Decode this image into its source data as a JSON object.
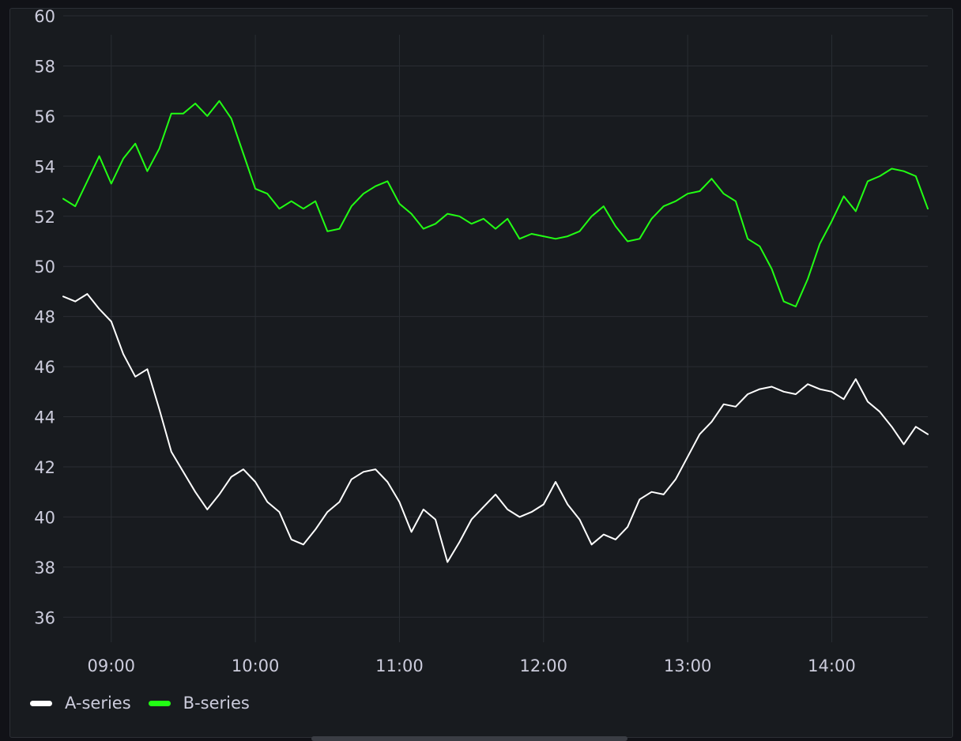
{
  "panel": {
    "background": "#181b1f",
    "grid_color": "#2a2d33"
  },
  "chart_data": {
    "type": "line",
    "title": "",
    "xlabel": "",
    "ylabel": "",
    "x_ticks": [
      "09:00",
      "10:00",
      "11:00",
      "12:00",
      "13:00",
      "14:00"
    ],
    "x_range": [
      "08:40",
      "14:40"
    ],
    "y_ticks": [
      36,
      38,
      40,
      42,
      44,
      46,
      48,
      50,
      52,
      54,
      56,
      58,
      60
    ],
    "ylim": [
      35,
      60
    ],
    "grid": true,
    "legend_position": "bottom-left",
    "series": [
      {
        "name": "A-series",
        "color": "#ffffff",
        "points": [
          [
            "08:40",
            48.8
          ],
          [
            "08:45",
            48.6
          ],
          [
            "08:50",
            48.9
          ],
          [
            "08:55",
            48.3
          ],
          [
            "09:00",
            47.8
          ],
          [
            "09:05",
            46.5
          ],
          [
            "09:10",
            45.6
          ],
          [
            "09:15",
            45.9
          ],
          [
            "09:20",
            44.3
          ],
          [
            "09:25",
            42.6
          ],
          [
            "09:30",
            41.8
          ],
          [
            "09:35",
            41.0
          ],
          [
            "09:40",
            40.3
          ],
          [
            "09:45",
            40.9
          ],
          [
            "09:50",
            41.6
          ],
          [
            "09:55",
            41.9
          ],
          [
            "10:00",
            41.4
          ],
          [
            "10:05",
            40.6
          ],
          [
            "10:10",
            40.2
          ],
          [
            "10:15",
            39.1
          ],
          [
            "10:20",
            38.9
          ],
          [
            "10:25",
            39.5
          ],
          [
            "10:30",
            40.2
          ],
          [
            "10:35",
            40.6
          ],
          [
            "10:40",
            41.5
          ],
          [
            "10:45",
            41.8
          ],
          [
            "10:50",
            41.9
          ],
          [
            "10:55",
            41.4
          ],
          [
            "11:00",
            40.6
          ],
          [
            "11:05",
            39.4
          ],
          [
            "11:10",
            40.3
          ],
          [
            "11:15",
            39.9
          ],
          [
            "11:20",
            38.2
          ],
          [
            "11:25",
            39.0
          ],
          [
            "11:30",
            39.9
          ],
          [
            "11:35",
            40.4
          ],
          [
            "11:40",
            40.9
          ],
          [
            "11:45",
            40.3
          ],
          [
            "11:50",
            40.0
          ],
          [
            "11:55",
            40.2
          ],
          [
            "12:00",
            40.5
          ],
          [
            "12:05",
            41.4
          ],
          [
            "12:10",
            40.5
          ],
          [
            "12:15",
            39.9
          ],
          [
            "12:20",
            38.9
          ],
          [
            "12:25",
            39.3
          ],
          [
            "12:30",
            39.1
          ],
          [
            "12:35",
            39.6
          ],
          [
            "12:40",
            40.7
          ],
          [
            "12:45",
            41.0
          ],
          [
            "12:50",
            40.9
          ],
          [
            "12:55",
            41.5
          ],
          [
            "13:00",
            42.4
          ],
          [
            "13:05",
            43.3
          ],
          [
            "13:10",
            43.8
          ],
          [
            "13:15",
            44.5
          ],
          [
            "13:20",
            44.4
          ],
          [
            "13:25",
            44.9
          ],
          [
            "13:30",
            45.1
          ],
          [
            "13:35",
            45.2
          ],
          [
            "13:40",
            45.0
          ],
          [
            "13:45",
            44.9
          ],
          [
            "13:50",
            45.3
          ],
          [
            "13:55",
            45.1
          ],
          [
            "14:00",
            45.0
          ],
          [
            "14:05",
            44.7
          ],
          [
            "14:10",
            45.5
          ],
          [
            "14:15",
            44.6
          ],
          [
            "14:20",
            44.2
          ],
          [
            "14:25",
            43.6
          ],
          [
            "14:30",
            42.9
          ],
          [
            "14:35",
            43.6
          ],
          [
            "14:40",
            43.3
          ]
        ]
      },
      {
        "name": "B-series",
        "color": "#22ff14",
        "points": [
          [
            "08:40",
            52.7
          ],
          [
            "08:45",
            52.4
          ],
          [
            "08:50",
            53.4
          ],
          [
            "08:55",
            54.4
          ],
          [
            "09:00",
            53.3
          ],
          [
            "09:05",
            54.3
          ],
          [
            "09:10",
            54.9
          ],
          [
            "09:15",
            53.8
          ],
          [
            "09:20",
            54.7
          ],
          [
            "09:25",
            56.1
          ],
          [
            "09:30",
            56.1
          ],
          [
            "09:35",
            56.5
          ],
          [
            "09:40",
            56.0
          ],
          [
            "09:45",
            56.6
          ],
          [
            "09:50",
            55.9
          ],
          [
            "09:55",
            54.5
          ],
          [
            "10:00",
            53.1
          ],
          [
            "10:05",
            52.9
          ],
          [
            "10:10",
            52.3
          ],
          [
            "10:15",
            52.6
          ],
          [
            "10:20",
            52.3
          ],
          [
            "10:25",
            52.6
          ],
          [
            "10:30",
            51.4
          ],
          [
            "10:35",
            51.5
          ],
          [
            "10:40",
            52.4
          ],
          [
            "10:45",
            52.9
          ],
          [
            "10:50",
            53.2
          ],
          [
            "10:55",
            53.4
          ],
          [
            "11:00",
            52.5
          ],
          [
            "11:05",
            52.1
          ],
          [
            "11:10",
            51.5
          ],
          [
            "11:15",
            51.7
          ],
          [
            "11:20",
            52.1
          ],
          [
            "11:25",
            52.0
          ],
          [
            "11:30",
            51.7
          ],
          [
            "11:35",
            51.9
          ],
          [
            "11:40",
            51.5
          ],
          [
            "11:45",
            51.9
          ],
          [
            "11:50",
            51.1
          ],
          [
            "11:55",
            51.3
          ],
          [
            "12:00",
            51.2
          ],
          [
            "12:05",
            51.1
          ],
          [
            "12:10",
            51.2
          ],
          [
            "12:15",
            51.4
          ],
          [
            "12:20",
            52.0
          ],
          [
            "12:25",
            52.4
          ],
          [
            "12:30",
            51.6
          ],
          [
            "12:35",
            51.0
          ],
          [
            "12:40",
            51.1
          ],
          [
            "12:45",
            51.9
          ],
          [
            "12:50",
            52.4
          ],
          [
            "12:55",
            52.6
          ],
          [
            "13:00",
            52.9
          ],
          [
            "13:05",
            53.0
          ],
          [
            "13:10",
            53.5
          ],
          [
            "13:15",
            52.9
          ],
          [
            "13:20",
            52.6
          ],
          [
            "13:25",
            51.1
          ],
          [
            "13:30",
            50.8
          ],
          [
            "13:35",
            49.9
          ],
          [
            "13:40",
            48.6
          ],
          [
            "13:45",
            48.4
          ],
          [
            "13:50",
            49.5
          ],
          [
            "13:55",
            50.9
          ],
          [
            "14:00",
            51.8
          ],
          [
            "14:05",
            52.8
          ],
          [
            "14:10",
            52.2
          ],
          [
            "14:15",
            53.4
          ],
          [
            "14:20",
            53.6
          ],
          [
            "14:25",
            53.9
          ],
          [
            "14:30",
            53.8
          ],
          [
            "14:35",
            53.6
          ],
          [
            "14:40",
            52.3
          ]
        ]
      }
    ]
  }
}
